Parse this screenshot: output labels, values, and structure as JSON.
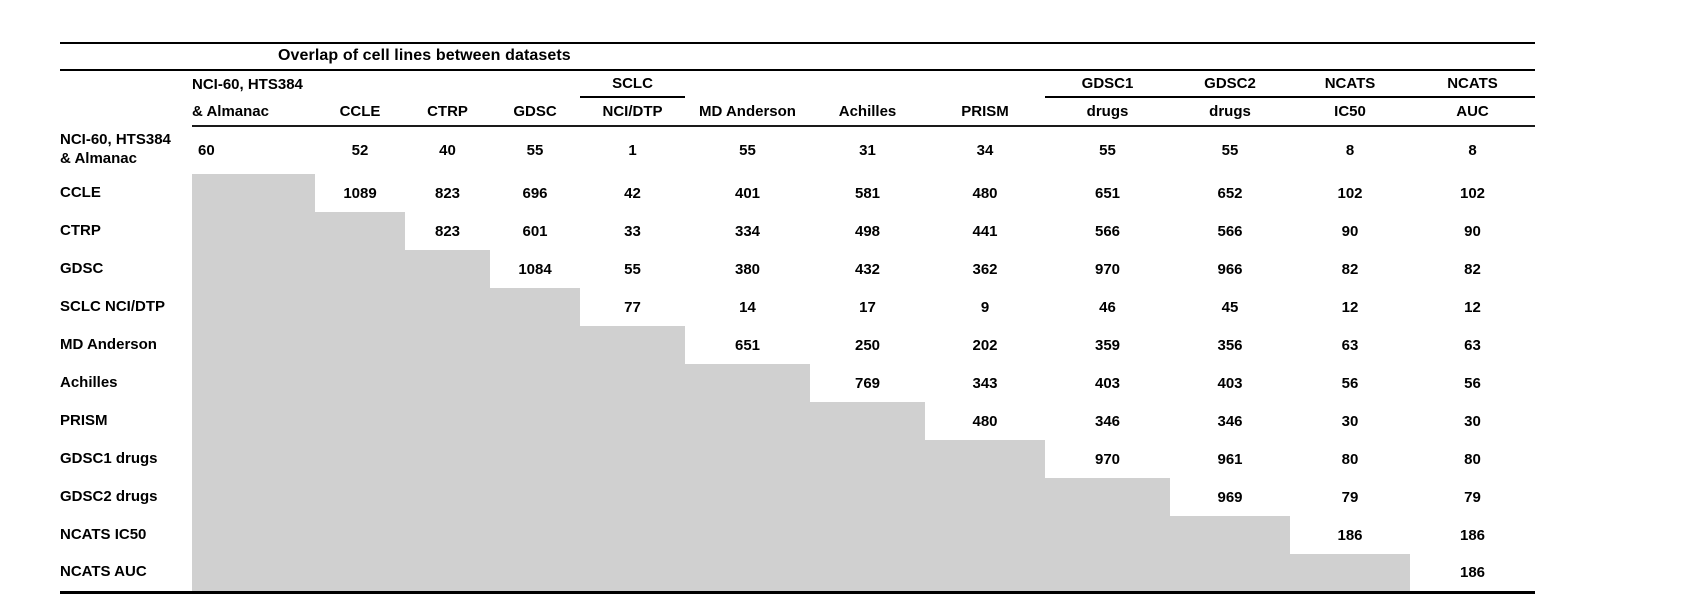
{
  "title": "Overlap of cell lines between datasets",
  "colors": {
    "shaded_cell": "#d0d0d0",
    "rule": "#000000",
    "text": "#000000",
    "background": "#ffffff"
  },
  "table": {
    "columns": [
      {
        "line1": "NCI-60, HTS384",
        "line2": "& Almanac"
      },
      {
        "line1": "",
        "line2": "CCLE"
      },
      {
        "line1": "",
        "line2": "CTRP"
      },
      {
        "line1": "",
        "line2": "GDSC"
      },
      {
        "line1": "SCLC",
        "line2": "NCI/DTP"
      },
      {
        "line1": "",
        "line2": "MD Anderson"
      },
      {
        "line1": "",
        "line2": "Achilles"
      },
      {
        "line1": "",
        "line2": "PRISM"
      },
      {
        "line1": "GDSC1",
        "line2": "drugs"
      },
      {
        "line1": "GDSC2",
        "line2": "drugs"
      },
      {
        "line1": "NCATS",
        "line2": "IC50"
      },
      {
        "line1": "NCATS",
        "line2": "AUC"
      }
    ],
    "row_labels": [
      {
        "line1": "NCI-60, HTS384",
        "line2": "& Almanac"
      },
      {
        "line1": "CCLE"
      },
      {
        "line1": "CTRP"
      },
      {
        "line1": "GDSC"
      },
      {
        "line1": "SCLC NCI/DTP"
      },
      {
        "line1": "MD Anderson"
      },
      {
        "line1": "Achilles"
      },
      {
        "line1": "PRISM"
      },
      {
        "line1": "GDSC1 drugs"
      },
      {
        "line1": "GDSC2 drugs"
      },
      {
        "line1": "NCATS IC50"
      },
      {
        "line1": "NCATS AUC"
      }
    ]
  },
  "chart_data": {
    "type": "table",
    "title": "Overlap of cell lines between datasets",
    "column_labels": [
      "NCI-60, HTS384 & Almanac",
      "CCLE",
      "CTRP",
      "GDSC",
      "SCLC NCI/DTP",
      "MD Anderson",
      "Achilles",
      "PRISM",
      "GDSC1 drugs",
      "GDSC2 drugs",
      "NCATS IC50",
      "NCATS AUC"
    ],
    "row_labels": [
      "NCI-60, HTS384 & Almanac",
      "CCLE",
      "CTRP",
      "GDSC",
      "SCLC NCI/DTP",
      "MD Anderson",
      "Achilles",
      "PRISM",
      "GDSC1 drugs",
      "GDSC2 drugs",
      "NCATS IC50",
      "NCATS AUC"
    ],
    "matrix": [
      [
        60,
        52,
        40,
        55,
        1,
        55,
        31,
        34,
        55,
        55,
        8,
        8
      ],
      [
        null,
        1089,
        823,
        696,
        42,
        401,
        581,
        480,
        651,
        652,
        102,
        102
      ],
      [
        null,
        null,
        823,
        601,
        33,
        334,
        498,
        441,
        566,
        566,
        90,
        90
      ],
      [
        null,
        null,
        null,
        1084,
        55,
        380,
        432,
        362,
        970,
        966,
        82,
        82
      ],
      [
        null,
        null,
        null,
        null,
        77,
        14,
        17,
        9,
        46,
        45,
        12,
        12
      ],
      [
        null,
        null,
        null,
        null,
        null,
        651,
        250,
        202,
        359,
        356,
        63,
        63
      ],
      [
        null,
        null,
        null,
        null,
        null,
        null,
        769,
        343,
        403,
        403,
        56,
        56
      ],
      [
        null,
        null,
        null,
        null,
        null,
        null,
        null,
        480,
        346,
        346,
        30,
        30
      ],
      [
        null,
        null,
        null,
        null,
        null,
        null,
        null,
        null,
        970,
        961,
        80,
        80
      ],
      [
        null,
        null,
        null,
        null,
        null,
        null,
        null,
        null,
        null,
        969,
        79,
        79
      ],
      [
        null,
        null,
        null,
        null,
        null,
        null,
        null,
        null,
        null,
        null,
        186,
        186
      ],
      [
        null,
        null,
        null,
        null,
        null,
        null,
        null,
        null,
        null,
        null,
        null,
        186
      ]
    ],
    "shading": "lower-triangle cells shaded gray, no value shown",
    "grid": false,
    "legend": false
  }
}
